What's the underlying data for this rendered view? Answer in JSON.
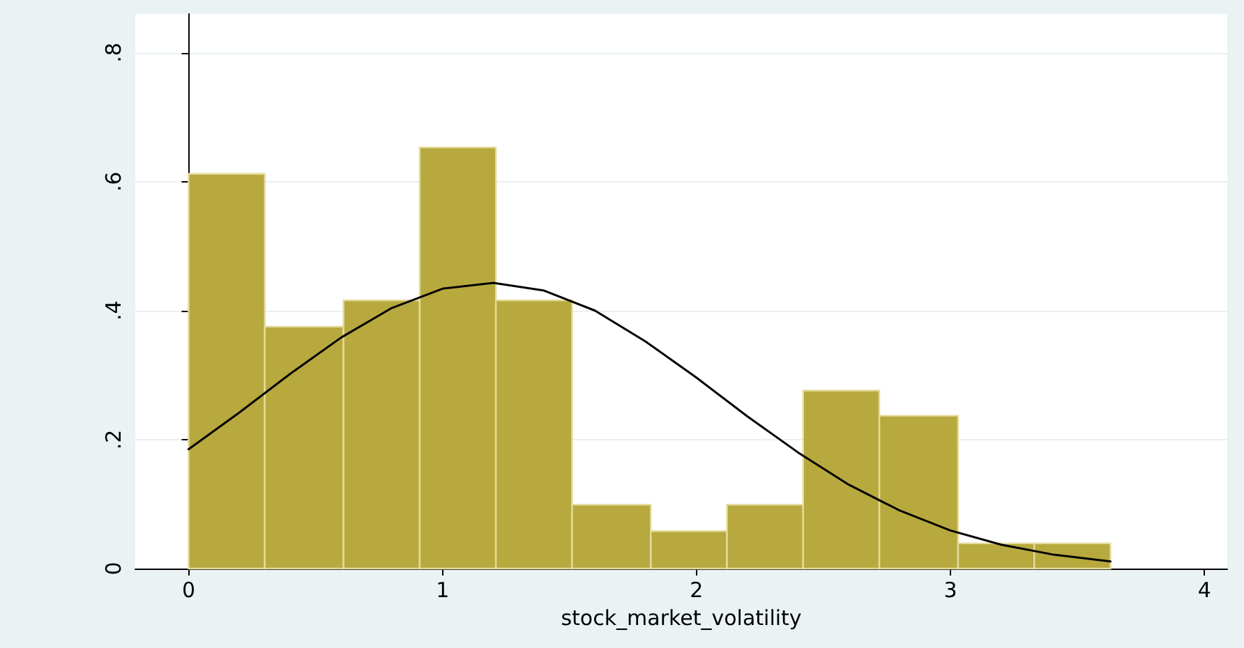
{
  "chart_data": {
    "type": "histogram",
    "xlabel": "stock_market_volatility",
    "bins": [
      0,
      0.3,
      0.61,
      0.91,
      1.21,
      1.51,
      1.82,
      2.12,
      2.42,
      2.72,
      3.03,
      3.33,
      3.63
    ],
    "values": [
      0.612,
      0.375,
      0.416,
      0.653,
      0.416,
      0.099,
      0.058,
      0.099,
      0.276,
      0.237,
      0.039,
      0.039
    ],
    "color": "#b8a93e",
    "series": [
      {
        "type": "line",
        "color": "#000000",
        "x": [
          0,
          0.2,
          0.4,
          0.6,
          0.8,
          1.0,
          1.2,
          1.4,
          1.6,
          1.8,
          2.0,
          2.2,
          2.4,
          2.6,
          2.8,
          3.0,
          3.2,
          3.4,
          3.63
        ],
        "values": [
          0.185,
          0.242,
          0.302,
          0.358,
          0.404,
          0.434,
          0.443,
          0.431,
          0.4,
          0.352,
          0.296,
          0.236,
          0.18,
          0.13,
          0.09,
          0.059,
          0.037,
          0.022,
          0.011
        ]
      }
    ],
    "xlim": [
      -0.21,
      4.09
    ],
    "xticks": [
      0,
      1,
      2,
      3,
      4
    ],
    "ylim": [
      0,
      0.86
    ],
    "yticks": [
      0,
      {
        "value": 0.2,
        "label": ".2"
      },
      {
        "value": 0.4,
        "label": ".4"
      },
      {
        "value": 0.6,
        "label": ".6"
      },
      {
        "value": 0.8,
        "label": ".8"
      }
    ],
    "grid": "y",
    "marker": "none",
    "line_style": "solid"
  }
}
